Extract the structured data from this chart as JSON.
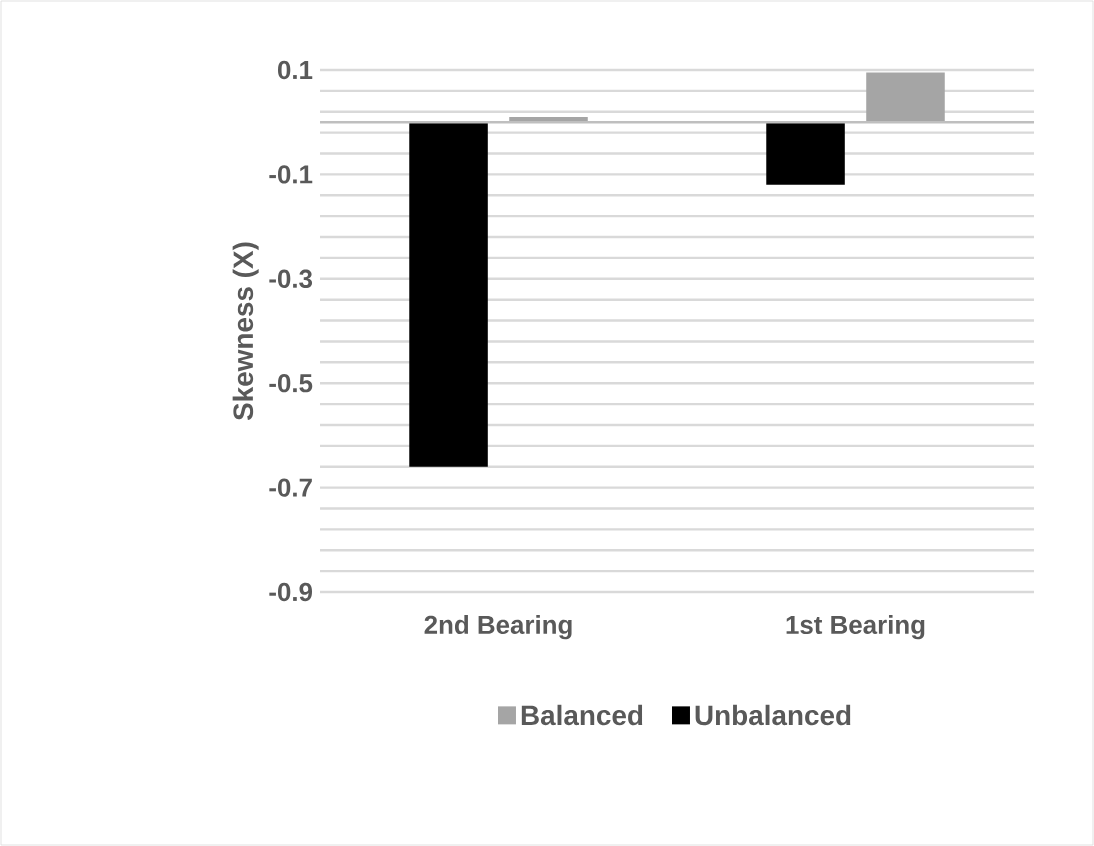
{
  "chart_data": {
    "type": "bar",
    "ylabel": "Skewness (X)",
    "categories": [
      "2nd Bearing",
      "1st Bearing"
    ],
    "series": [
      {
        "name": "Balanced",
        "color": "#a5a5a5",
        "values": [
          0.01,
          0.095
        ]
      },
      {
        "name": "Unbalanced",
        "color": "#000000",
        "values": [
          -0.66,
          -0.12
        ]
      }
    ],
    "ylim": [
      -0.9,
      0.1
    ],
    "yticks": [
      0.1,
      {
        "value": 0.06,
        "label": null
      },
      {
        "value": 0.02,
        "label": null
      },
      {
        "value": -0.02,
        "label": null
      },
      {
        "value": -0.06,
        "label": null
      },
      -0.1,
      {
        "value": -0.14,
        "label": null
      },
      {
        "value": -0.18,
        "label": null
      },
      {
        "value": -0.22,
        "label": null
      },
      {
        "value": -0.26,
        "label": null
      },
      -0.3,
      {
        "value": -0.34,
        "label": null
      },
      {
        "value": -0.38,
        "label": null
      },
      {
        "value": -0.42,
        "label": null
      },
      {
        "value": -0.46,
        "label": null
      },
      -0.5,
      {
        "value": -0.54,
        "label": null
      },
      {
        "value": -0.58,
        "label": null
      },
      {
        "value": -0.62,
        "label": null
      },
      {
        "value": -0.66,
        "label": null
      },
      -0.7,
      {
        "value": -0.74,
        "label": null
      },
      {
        "value": -0.78,
        "label": null
      },
      {
        "value": -0.82,
        "label": null
      },
      {
        "value": -0.86,
        "label": null
      },
      -0.9
    ],
    "grid": "y",
    "legend": "bottom"
  }
}
